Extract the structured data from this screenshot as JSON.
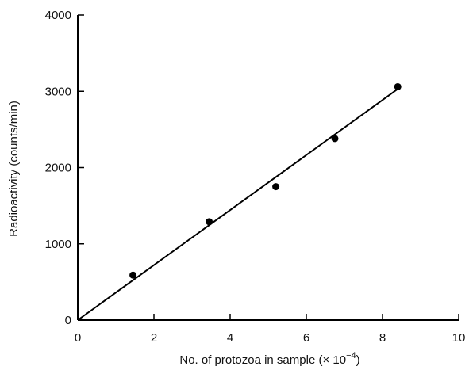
{
  "chart_data": {
    "type": "scatter",
    "x_label": {
      "main": "No. of protozoa in sample (",
      "times": "×",
      "base": " 10",
      "exp": "−4",
      "close": ")"
    },
    "y_label": "Radioactivity (counts/min)",
    "xlim": [
      0,
      10
    ],
    "ylim": [
      0,
      4000
    ],
    "x_ticks": [
      "0",
      "2",
      "4",
      "6",
      "8",
      "10"
    ],
    "y_ticks": [
      "0",
      "1000",
      "2000",
      "3000",
      "4000"
    ],
    "grid": false,
    "legend": "none",
    "series": [
      {
        "x": [
          1.45,
          3.45,
          5.2,
          6.75,
          8.4
        ],
        "y": [
          590,
          1290,
          1750,
          2380,
          3060
        ]
      }
    ],
    "fit_line": {
      "x": [
        0,
        8.4
      ],
      "y": [
        0,
        3030
      ]
    }
  }
}
